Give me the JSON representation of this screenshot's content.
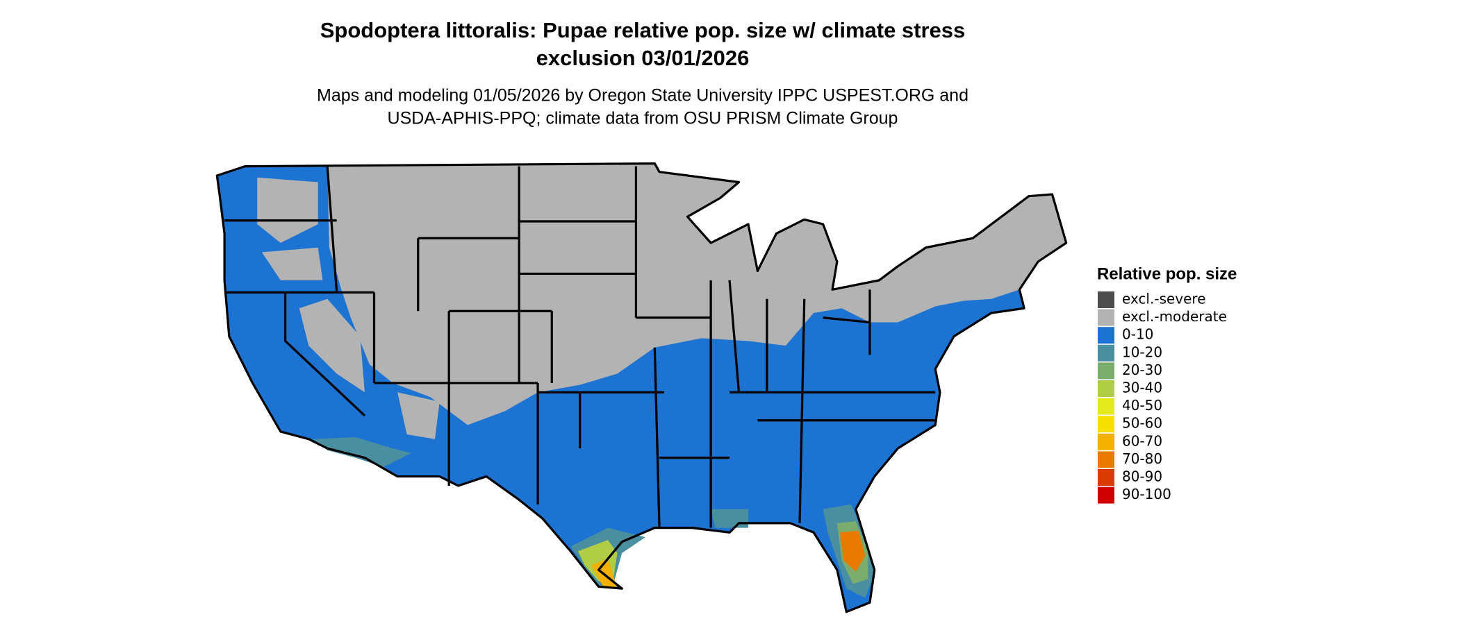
{
  "header": {
    "title_lines": [
      "Spodoptera littoralis: Pupae relative pop. size w/ climate stress",
      "exclusion 03/01/2026"
    ],
    "subtitle_lines": [
      "Maps and modeling 01/05/2026 by Oregon State University IPPC USPEST.ORG and",
      "USDA-APHIS-PPQ; climate data from OSU PRISM Climate Group"
    ]
  },
  "legend": {
    "title": "Relative pop. size",
    "items": [
      {
        "label": "excl.-severe",
        "color": "#4d4d4d"
      },
      {
        "label": "excl.-moderate",
        "color": "#b3b3b3"
      },
      {
        "label": "0-10",
        "color": "#1c73d1"
      },
      {
        "label": "10-20",
        "color": "#4a8fa0"
      },
      {
        "label": "20-30",
        "color": "#7aac6e"
      },
      {
        "label": "30-40",
        "color": "#b1cc45"
      },
      {
        "label": "40-50",
        "color": "#e2ea1e"
      },
      {
        "label": "50-60",
        "color": "#f7df00"
      },
      {
        "label": "60-70",
        "color": "#f2b000"
      },
      {
        "label": "70-80",
        "color": "#e87a00"
      },
      {
        "label": "80-90",
        "color": "#d93a00"
      },
      {
        "label": "90-100",
        "color": "#d10000"
      }
    ]
  }
}
